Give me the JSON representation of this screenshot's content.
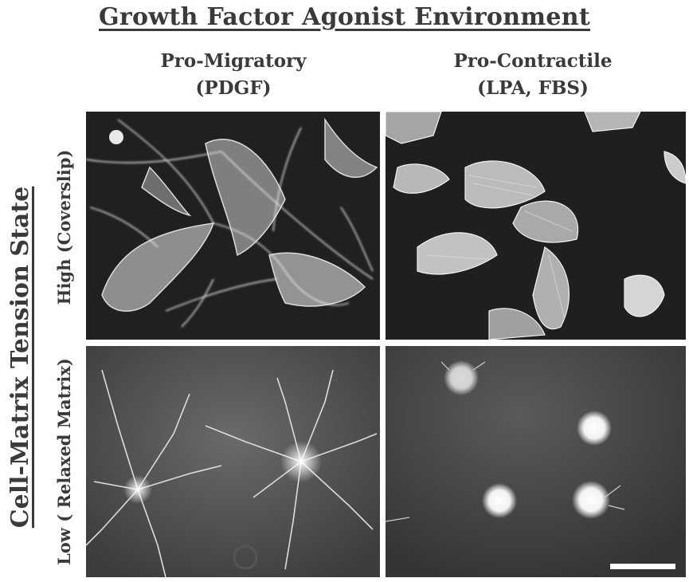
{
  "figure": {
    "title": "Growth Factor Agonist Environment",
    "columns": [
      {
        "line1": "Pro-Migratory",
        "line2": "(PDGF)"
      },
      {
        "line1": "Pro-Contractile",
        "line2": "(LPA, FBS)"
      }
    ],
    "row_axis_title": "Cell-Matrix Tension State",
    "rows": [
      {
        "label": "High (Coverslip)"
      },
      {
        "label": "Low ( Relaxed Matrix)"
      }
    ]
  },
  "colors": {
    "text": "#3a3a3a",
    "panel_dark": "#202020",
    "cell_bright": "#e6e6e6",
    "scale_bar": "#ffffff"
  },
  "icons": {
    "scale_bar": "scale-bar"
  }
}
